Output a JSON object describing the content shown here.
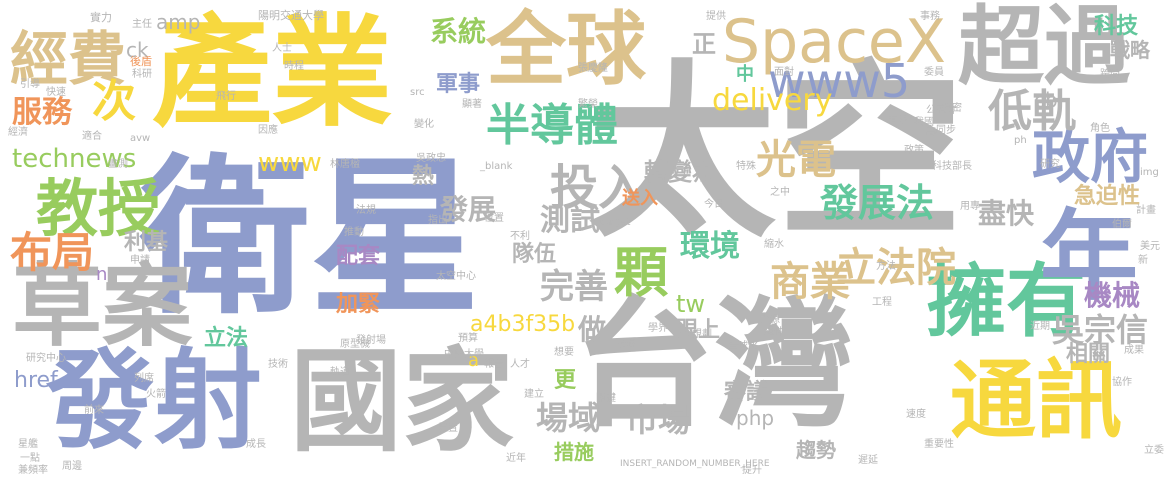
{
  "palette": {
    "gray": "#b5b5b5",
    "blue": "#8e9ccc",
    "yellow": "#f7d83e",
    "tan": "#dcc28c",
    "green": "#98cc5e",
    "teal": "#62c79c",
    "orange": "#f0955a",
    "pink": "#ef8bb5",
    "purple": "#a888c4",
    "ltgray": "#c9c9c9"
  },
  "words": [
    {
      "text": "太空",
      "color": "gray"
    },
    {
      "text": "衛星",
      "color": "blue"
    },
    {
      "text": "產業",
      "color": "yellow"
    },
    {
      "text": "台灣",
      "color": "gray"
    },
    {
      "text": "國家",
      "color": "gray"
    },
    {
      "text": "發射",
      "color": "blue"
    },
    {
      "text": "全球",
      "color": "tan"
    },
    {
      "text": "超過",
      "color": "gray"
    },
    {
      "text": "通訊",
      "color": "yellow"
    },
    {
      "text": "擁有",
      "color": "teal"
    },
    {
      "text": "草案",
      "color": "gray"
    },
    {
      "text": "年",
      "color": "blue"
    },
    {
      "text": "SpaceX",
      "color": "tan"
    },
    {
      "text": "教授",
      "color": "green"
    },
    {
      "text": "政府",
      "color": "blue"
    },
    {
      "text": "經費",
      "color": "tan"
    },
    {
      "text": "半導體",
      "color": "teal"
    },
    {
      "text": "投入",
      "color": "gray"
    },
    {
      "text": "www5",
      "color": "blue"
    },
    {
      "text": "低軌",
      "color": "gray"
    },
    {
      "text": "布局",
      "color": "orange"
    },
    {
      "text": "顆",
      "color": "green"
    },
    {
      "text": "立法院",
      "color": "tan"
    },
    {
      "text": "商業",
      "color": "tan"
    },
    {
      "text": "光電",
      "color": "tan"
    },
    {
      "text": "發展法",
      "color": "teal"
    },
    {
      "text": "次",
      "color": "yellow"
    },
    {
      "text": "服務",
      "color": "orange"
    },
    {
      "text": "delivery",
      "color": "yellow"
    },
    {
      "text": "technews",
      "color": "green"
    },
    {
      "text": "www",
      "color": "yellow"
    },
    {
      "text": "系統",
      "color": "green"
    },
    {
      "text": "完善",
      "color": "gray"
    },
    {
      "text": "環境",
      "color": "teal"
    },
    {
      "text": "市場",
      "color": "gray"
    },
    {
      "text": "場域",
      "color": "gray"
    },
    {
      "text": "吳宗信",
      "color": "gray"
    },
    {
      "text": "機械",
      "color": "purple"
    },
    {
      "text": "測試",
      "color": "gray"
    },
    {
      "text": "發展",
      "color": "gray"
    },
    {
      "text": "轉變為",
      "color": "gray"
    },
    {
      "text": "科技",
      "color": "teal"
    },
    {
      "text": "戰略",
      "color": "gray"
    },
    {
      "text": "a4b3f35b",
      "color": "yellow"
    },
    {
      "text": "做",
      "color": "gray"
    },
    {
      "text": "跟上",
      "color": "gray"
    },
    {
      "text": "相關",
      "color": "gray"
    },
    {
      "text": "審議",
      "color": "gray"
    },
    {
      "text": "急迫性",
      "color": "tan"
    },
    {
      "text": "盡快",
      "color": "gray"
    },
    {
      "text": "軍事",
      "color": "blue"
    },
    {
      "text": "ck",
      "color": "gray"
    },
    {
      "text": "amp",
      "color": "gray"
    },
    {
      "text": "cb",
      "color": "gray"
    },
    {
      "text": "熱",
      "color": "gray"
    },
    {
      "text": "利基",
      "color": "gray"
    },
    {
      "text": "配套",
      "color": "purple"
    },
    {
      "text": "隊伍",
      "color": "gray"
    },
    {
      "text": "加緊",
      "color": "orange"
    },
    {
      "text": "tw",
      "color": "green"
    },
    {
      "text": "立法",
      "color": "teal"
    },
    {
      "text": "href",
      "color": "blue"
    },
    {
      "text": "更",
      "color": "green"
    },
    {
      "text": "措施",
      "color": "green"
    },
    {
      "text": "趨勢",
      "color": "gray"
    },
    {
      "text": "php",
      "color": "gray"
    },
    {
      "text": "正",
      "color": "gray"
    },
    {
      "text": "中",
      "color": "teal"
    },
    {
      "text": "送入",
      "color": "orange"
    },
    {
      "text": "a",
      "color": "yellow"
    },
    {
      "text": "n",
      "color": "purple"
    },
    {
      "text": "陽明交通大學",
      "color": "gray"
    },
    {
      "text": "實力",
      "color": "gray"
    },
    {
      "text": "主任",
      "color": "gray"
    },
    {
      "text": "科研",
      "color": "gray"
    },
    {
      "text": "後盾",
      "color": "orange"
    },
    {
      "text": "引導",
      "color": "gray"
    },
    {
      "text": "快速",
      "color": "gray"
    },
    {
      "text": "經濟",
      "color": "gray"
    },
    {
      "text": "適合",
      "color": "gray"
    },
    {
      "text": "avw",
      "color": "gray"
    },
    {
      "text": "畫測",
      "color": "gray"
    },
    {
      "text": "林唐楹",
      "color": "gray"
    },
    {
      "text": "吳政忠",
      "color": "gray"
    },
    {
      "text": "_blank",
      "color": "gray"
    },
    {
      "text": "科技部長",
      "color": "gray"
    },
    {
      "text": "src",
      "color": "gray"
    },
    {
      "text": "特殊",
      "color": "gray"
    },
    {
      "text": "img",
      "color": "gray"
    },
    {
      "text": "target",
      "color": "gray"
    },
    {
      "text": "太空中心",
      "color": "gray"
    },
    {
      "text": "發射場",
      "color": "gray"
    },
    {
      "text": "中央大學",
      "color": "gray"
    },
    {
      "text": "報告",
      "color": "gray"
    },
    {
      "text": "人才",
      "color": "gray"
    },
    {
      "text": "全球化",
      "color": "gray"
    },
    {
      "text": "研究中心",
      "color": "gray"
    },
    {
      "text": "原型機",
      "color": "gray"
    },
    {
      "text": "技術",
      "color": "gray"
    },
    {
      "text": "軌道",
      "color": "gray"
    },
    {
      "text": "火箭",
      "color": "gray"
    },
    {
      "text": "成長",
      "color": "gray"
    },
    {
      "text": "INSERT_RANDOM_NUMBER_HERE",
      "color": "gray"
    },
    {
      "text": "遲延",
      "color": "gray"
    },
    {
      "text": "重要性",
      "color": "gray"
    },
    {
      "text": "立委",
      "color": "gray"
    },
    {
      "text": "星艦",
      "color": "gray"
    },
    {
      "text": "一點",
      "color": "gray"
    },
    {
      "text": "頻率",
      "color": "gray"
    },
    {
      "text": "兼",
      "color": "gray"
    },
    {
      "text": "周邊",
      "color": "gray"
    },
    {
      "text": "近期",
      "color": "gray"
    },
    {
      "text": "提升",
      "color": "gray"
    },
    {
      "text": "計畫",
      "color": "gray"
    },
    {
      "text": "美元",
      "color": "gray"
    },
    {
      "text": "新",
      "color": "gray"
    },
    {
      "text": "公聽會",
      "color": "gray"
    },
    {
      "text": "委員",
      "color": "gray"
    },
    {
      "text": "張慶隆",
      "color": "gray"
    },
    {
      "text": "組件",
      "color": "gray"
    },
    {
      "text": "資源",
      "color": "gray"
    },
    {
      "text": "方法",
      "color": "gray"
    },
    {
      "text": "工程",
      "color": "gray"
    },
    {
      "text": "協作",
      "color": "gray"
    },
    {
      "text": "變化",
      "color": "gray"
    },
    {
      "text": "因應",
      "color": "gray"
    },
    {
      "text": "今日",
      "color": "gray"
    },
    {
      "text": "研究",
      "color": "gray"
    },
    {
      "text": "之中",
      "color": "gray"
    },
    {
      "text": "用專",
      "color": "gray"
    },
    {
      "text": "政策",
      "color": "gray"
    },
    {
      "text": "精密",
      "color": "gray"
    },
    {
      "text": "同步",
      "color": "gray"
    },
    {
      "text": "角色",
      "color": "gray"
    },
    {
      "text": "成果",
      "color": "gray"
    },
    {
      "text": "指出",
      "color": "gray"
    },
    {
      "text": "位置",
      "color": "gray"
    },
    {
      "text": "不利",
      "color": "gray"
    },
    {
      "text": "法規",
      "color": "gray"
    },
    {
      "text": "推動",
      "color": "gray"
    },
    {
      "text": "申請",
      "color": "gray"
    },
    {
      "text": "預算",
      "color": "gray"
    },
    {
      "text": "建立",
      "color": "gray"
    },
    {
      "text": "關鍵",
      "color": "gray"
    },
    {
      "text": "規劃",
      "color": "gray"
    },
    {
      "text": "扮演",
      "color": "gray"
    },
    {
      "text": "學界",
      "color": "gray"
    },
    {
      "text": "想要",
      "color": "gray"
    },
    {
      "text": "前來",
      "color": "gray"
    },
    {
      "text": "列席",
      "color": "gray"
    },
    {
      "text": "設置",
      "color": "gray"
    },
    {
      "text": "近年",
      "color": "gray"
    },
    {
      "text": "速度",
      "color": "gray"
    },
    {
      "text": "飛行",
      "color": "gray"
    },
    {
      "text": "人士",
      "color": "gray"
    },
    {
      "text": "時程",
      "color": "gray"
    },
    {
      "text": "有限",
      "color": "gray"
    },
    {
      "text": "我國",
      "color": "gray"
    },
    {
      "text": "高",
      "color": "gray"
    },
    {
      "text": "縮水",
      "color": "gray"
    },
    {
      "text": "面對",
      "color": "gray"
    },
    {
      "text": "跨間",
      "color": "gray"
    },
    {
      "text": "提供",
      "color": "gray"
    },
    {
      "text": "繁榮",
      "color": "gray"
    },
    {
      "text": "顯著",
      "color": "gray"
    },
    {
      "text": "事務",
      "color": "gray"
    },
    {
      "text": "ph",
      "color": "gray"
    },
    {
      "text": "伯爾",
      "color": "gray"
    }
  ]
}
